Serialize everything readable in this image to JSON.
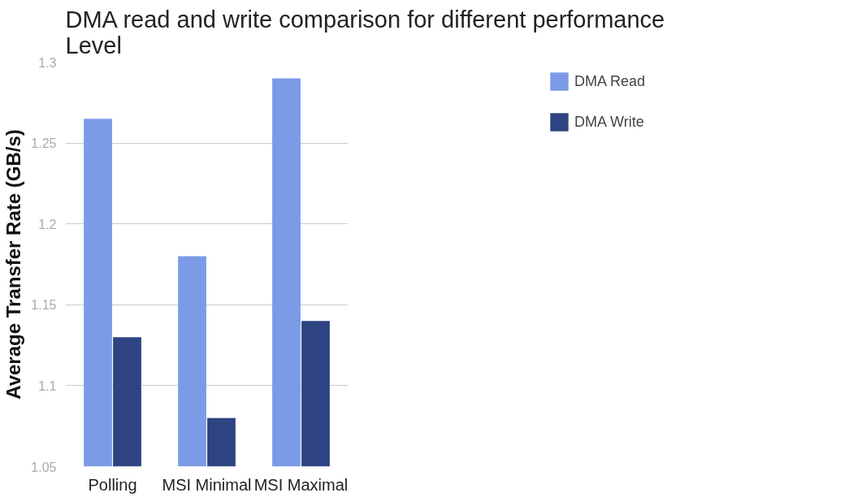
{
  "chart_data": {
    "type": "bar",
    "title": "DMA read and write comparison for different performance Level",
    "ylabel": "Average Transfer Rate (GB/s)",
    "categories": [
      "Polling",
      "MSI Minimal",
      "MSI Maximal"
    ],
    "series": [
      {
        "name": "DMA Read",
        "color": "#7b9be6",
        "values": [
          1.265,
          1.18,
          1.29
        ]
      },
      {
        "name": "DMA Write",
        "color": "#2e4482",
        "values": [
          1.13,
          1.08,
          1.14
        ]
      }
    ],
    "ylim": [
      1.05,
      1.3
    ],
    "yticks": [
      1.05,
      1.1,
      1.15,
      1.2,
      1.25,
      1.3
    ],
    "grid": "y",
    "legend": "right"
  }
}
